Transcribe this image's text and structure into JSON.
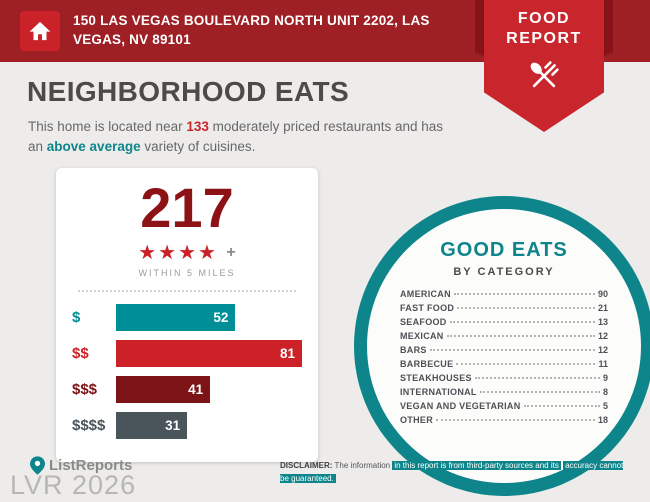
{
  "header": {
    "address": "150 LAS VEGAS BOULEVARD NORTH UNIT 2202, LAS VEGAS, NV 89101",
    "badge_line1": "FOOD",
    "badge_line2": "REPORT"
  },
  "page": {
    "title": "NEIGHBORHOOD EATS",
    "intro_pre": "This home is located near ",
    "intro_count": "133",
    "intro_mid": " moderately priced restaurants and has an ",
    "intro_highlight": "above average",
    "intro_post": " variety of cuisines."
  },
  "stats_card": {
    "total": "217",
    "stars": "★★★★",
    "plus": "+",
    "radius_label": "WITHIN 5 MILES",
    "bars": [
      {
        "label": "$",
        "value": "52"
      },
      {
        "label": "$$",
        "value": "81"
      },
      {
        "label": "$$$",
        "value": "41"
      },
      {
        "label": "$$$$",
        "value": "31"
      }
    ]
  },
  "good_eats": {
    "title": "GOOD EATS",
    "subtitle": "BY CATEGORY",
    "items": [
      {
        "name": "AMERICAN",
        "count": "90"
      },
      {
        "name": "FAST FOOD",
        "count": "21"
      },
      {
        "name": "SEAFOOD",
        "count": "13"
      },
      {
        "name": "MEXICAN",
        "count": "12"
      },
      {
        "name": "BARS",
        "count": "12"
      },
      {
        "name": "BARBECUE",
        "count": "11"
      },
      {
        "name": "STEAKHOUSES",
        "count": "9"
      },
      {
        "name": "INTERNATIONAL",
        "count": "8"
      },
      {
        "name": "VEGAN AND VEGETARIAN",
        "count": "5"
      },
      {
        "name": "OTHER",
        "count": "18"
      }
    ]
  },
  "footer": {
    "brand": "ListReports",
    "watermark": "LVR 2026",
    "disclaimer_label": "DISCLAIMER:",
    "disclaimer_normal": " The information ",
    "disclaimer_highlight1": "in this report is from third-party sources and its",
    "disclaimer_highlight2": "accuracy cannot be guaranteed."
  },
  "colors": {
    "header_red": "#9e1f24",
    "accent_red": "#c9252c",
    "teal": "#0e858b",
    "maroon": "#7c1316",
    "slate": "#4a545b"
  },
  "chart_data": [
    {
      "type": "bar",
      "orientation": "horizontal",
      "title": "217 restaurants within 5 miles by price level",
      "categories": [
        "$",
        "$$",
        "$$$",
        "$$$$"
      ],
      "values": [
        52,
        81,
        41,
        31
      ],
      "colors": [
        "#008f96",
        "#cb2127",
        "#7c1316",
        "#4a545b"
      ],
      "annotation": "4-star average rating, 217 total within 5 miles"
    },
    {
      "type": "table",
      "title": "GOOD EATS BY CATEGORY",
      "categories": [
        "AMERICAN",
        "FAST FOOD",
        "SEAFOOD",
        "MEXICAN",
        "BARS",
        "BARBECUE",
        "STEAKHOUSES",
        "INTERNATIONAL",
        "VEGAN AND VEGETARIAN",
        "OTHER"
      ],
      "values": [
        90,
        21,
        13,
        12,
        12,
        11,
        9,
        8,
        5,
        18
      ]
    }
  ]
}
